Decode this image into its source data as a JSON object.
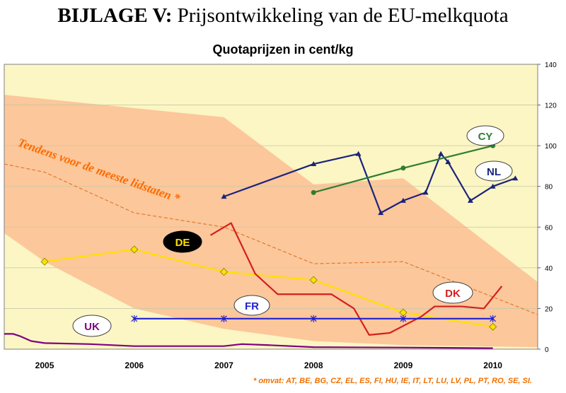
{
  "header": {
    "title_bold": "BIJLAGE V:",
    "title_rest": " Prijsontwikkeling van de EU-melkquota"
  },
  "chart_data": {
    "type": "line",
    "title": "Quotaprijzen in cent/kg",
    "xlabel": "",
    "ylabel": "",
    "ylim": [
      0,
      140
    ],
    "y_ticks": [
      "0",
      "20",
      "40",
      "60",
      "80",
      "100",
      "120",
      "140"
    ],
    "x_ticks": [
      "2005",
      "2006",
      "2007",
      "2008",
      "2009",
      "2010"
    ],
    "x_range": [
      2004.55,
      2010.5
    ],
    "grid": true,
    "y_axis_side": "right",
    "colors": {
      "plot_bg": "#fbf6c3",
      "band": "#fcc79a",
      "grid": "#c8c8a8",
      "trend": "#e07a30",
      "annotation": "#ff6a00",
      "footnote": "#f07000"
    },
    "band": {
      "upper": [
        [
          2004.55,
          125
        ],
        [
          2007,
          114
        ],
        [
          2008,
          81
        ],
        [
          2009,
          84
        ],
        [
          2010.5,
          33
        ]
      ],
      "lower": [
        [
          2004.55,
          57
        ],
        [
          2005,
          43
        ],
        [
          2006,
          20
        ],
        [
          2007,
          10
        ],
        [
          2008,
          4
        ],
        [
          2009,
          2
        ],
        [
          2010.5,
          1
        ]
      ]
    },
    "trend_line": [
      [
        2004.55,
        91
      ],
      [
        2005,
        87
      ],
      [
        2006,
        67
      ],
      [
        2007,
        60
      ],
      [
        2008,
        42
      ],
      [
        2009,
        43
      ],
      [
        2010.5,
        17
      ]
    ],
    "trend_label": "Tendens voor de meeste lidstaten *",
    "footnote": "* omvat: AT, BE, BG, CZ, EL, ES, FI, HU, IE, IT, LT, LU, LV, PL, PT, RO, SE, SI.",
    "series": [
      {
        "name": "NL",
        "color": "#1a237e",
        "marker": "triangle",
        "points": [
          [
            2007,
            75
          ],
          [
            2008,
            91
          ],
          [
            2008.5,
            96
          ],
          [
            2008.75,
            67
          ],
          [
            2009,
            73
          ],
          [
            2009.25,
            77
          ],
          [
            2009.42,
            96
          ],
          [
            2009.5,
            92
          ],
          [
            2009.75,
            73
          ],
          [
            2010,
            80
          ],
          [
            2010.25,
            84
          ]
        ]
      },
      {
        "name": "CY",
        "color": "#2e7d32",
        "marker": "circle",
        "points": [
          [
            2008,
            77
          ],
          [
            2009,
            89
          ],
          [
            2010,
            100
          ]
        ]
      },
      {
        "name": "DE",
        "color": "#ffe000",
        "marker": "diamond",
        "points": [
          [
            2005,
            43
          ],
          [
            2006,
            49
          ],
          [
            2007,
            38
          ],
          [
            2008,
            34
          ],
          [
            2009,
            18
          ],
          [
            2010,
            11
          ]
        ]
      },
      {
        "name": "DK",
        "color": "#d32020",
        "marker": "none",
        "points": [
          [
            2006.85,
            56
          ],
          [
            2007.08,
            62
          ],
          [
            2007.35,
            37
          ],
          [
            2007.6,
            27
          ],
          [
            2008,
            27
          ],
          [
            2008.2,
            27
          ],
          [
            2008.45,
            20
          ],
          [
            2008.62,
            7
          ],
          [
            2008.85,
            8
          ],
          [
            2009.2,
            16
          ],
          [
            2009.35,
            21
          ],
          [
            2009.65,
            21
          ],
          [
            2009.9,
            20
          ],
          [
            2010.1,
            31
          ]
        ]
      },
      {
        "name": "FR",
        "color": "#2020d0",
        "marker": "star",
        "points": [
          [
            2006,
            15
          ],
          [
            2007,
            15
          ],
          [
            2008,
            15
          ],
          [
            2009,
            15
          ],
          [
            2010,
            15
          ]
        ]
      },
      {
        "name": "UK",
        "color": "#800080",
        "marker": "none",
        "points": [
          [
            2004.55,
            7.5
          ],
          [
            2004.65,
            7.5
          ],
          [
            2004.72,
            6.5
          ],
          [
            2004.85,
            4
          ],
          [
            2005,
            3
          ],
          [
            2005.5,
            2.5
          ],
          [
            2006,
            1.5
          ],
          [
            2006.5,
            1.5
          ],
          [
            2007,
            1.5
          ],
          [
            2007.2,
            2.5
          ],
          [
            2007.5,
            2
          ],
          [
            2008,
            1
          ],
          [
            2009,
            0.8
          ],
          [
            2010,
            0.5
          ]
        ]
      }
    ]
  }
}
